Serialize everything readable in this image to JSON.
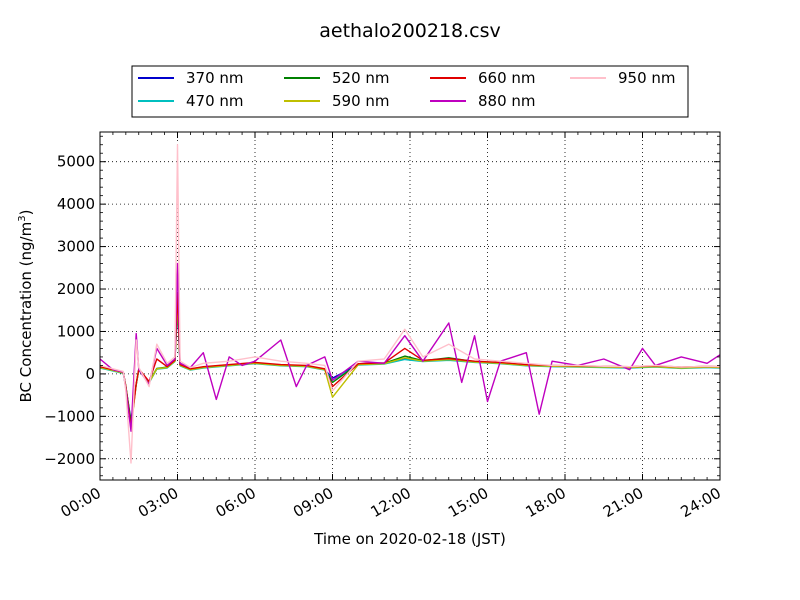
{
  "chart_data": {
    "type": "line",
    "title": "aethalo200218.csv",
    "xlabel": "Time on 2020-02-18 (JST)",
    "ylabel": "BC Concentration (ng/m",
    "ylabel_superscript": "3",
    "ylabel_suffix": ")",
    "xlim": [
      0,
      24
    ],
    "ylim": [
      -2500,
      5700
    ],
    "x_ticks": [
      0,
      3,
      6,
      9,
      12,
      15,
      18,
      21,
      24
    ],
    "x_tick_labels": [
      "00:00",
      "03:00",
      "06:00",
      "09:00",
      "12:00",
      "15:00",
      "18:00",
      "21:00",
      "24:00"
    ],
    "y_ticks": [
      -2000,
      -1000,
      0,
      1000,
      2000,
      3000,
      4000,
      5000
    ],
    "y_tick_labels": [
      "−2000",
      "−1000",
      "0",
      "1000",
      "2000",
      "3000",
      "4000",
      "5000"
    ],
    "grid": true,
    "legend_position": "top-center (above plot)",
    "series": [
      {
        "name": "370 nm",
        "color": "#0000cc",
        "x": [
          0.0,
          0.5,
          0.9,
          1.0,
          1.2,
          1.4,
          1.5,
          1.9,
          2.2,
          2.6,
          2.9,
          3.0,
          3.1,
          3.5,
          4.0,
          5.0,
          6.0,
          7.0,
          8.0,
          8.7,
          9.0,
          10.0,
          11.0,
          11.8,
          12.5,
          13.5,
          14.5,
          15.5,
          16.5,
          17.5,
          18.5,
          19.5,
          20.5,
          21.5,
          22.5,
          23.5,
          24.0
        ],
        "y": [
          150,
          80,
          20,
          -300,
          -1100,
          -250,
          100,
          -200,
          120,
          150,
          300,
          1600,
          200,
          100,
          150,
          200,
          250,
          200,
          180,
          100,
          -100,
          220,
          240,
          350,
          300,
          330,
          280,
          250,
          200,
          180,
          170,
          160,
          150,
          170,
          140,
          160,
          150
        ]
      },
      {
        "name": "470 nm",
        "color": "#00bfbf",
        "x": [
          0.0,
          0.5,
          0.9,
          1.0,
          1.2,
          1.4,
          1.5,
          1.9,
          2.2,
          2.6,
          2.9,
          3.0,
          3.1,
          3.5,
          4.0,
          5.0,
          6.0,
          7.0,
          8.0,
          8.7,
          9.0,
          10.0,
          11.0,
          11.8,
          12.5,
          13.5,
          14.5,
          15.5,
          16.5,
          17.5,
          18.5,
          19.5,
          20.5,
          21.5,
          22.5,
          23.5,
          24.0
        ],
        "y": [
          140,
          70,
          10,
          -320,
          -1200,
          -260,
          90,
          -210,
          110,
          140,
          290,
          1700,
          190,
          90,
          140,
          190,
          240,
          190,
          170,
          90,
          -150,
          210,
          230,
          340,
          290,
          320,
          270,
          240,
          190,
          170,
          160,
          150,
          140,
          160,
          130,
          150,
          140
        ]
      },
      {
        "name": "520 nm",
        "color": "#008000",
        "x": [
          0.0,
          0.5,
          0.9,
          1.0,
          1.2,
          1.4,
          1.5,
          1.9,
          2.2,
          2.6,
          2.9,
          3.0,
          3.1,
          3.5,
          4.0,
          5.0,
          6.0,
          7.0,
          8.0,
          8.7,
          9.0,
          10.0,
          11.0,
          11.8,
          12.5,
          13.5,
          14.5,
          15.5,
          16.5,
          17.5,
          18.5,
          19.5,
          20.5,
          21.5,
          22.5,
          23.5,
          24.0
        ],
        "y": [
          160,
          90,
          30,
          -280,
          -1150,
          -240,
          110,
          -190,
          130,
          160,
          310,
          1650,
          210,
          110,
          160,
          210,
          260,
          210,
          190,
          110,
          -200,
          230,
          250,
          420,
          310,
          380,
          290,
          260,
          210,
          190,
          180,
          170,
          160,
          180,
          150,
          170,
          160
        ]
      },
      {
        "name": "590 nm",
        "color": "#bfbf00",
        "x": [
          0.0,
          0.5,
          0.9,
          1.0,
          1.2,
          1.4,
          1.5,
          1.9,
          2.2,
          2.6,
          2.9,
          3.0,
          3.1,
          3.5,
          4.0,
          5.0,
          6.0,
          7.0,
          8.0,
          8.7,
          9.0,
          10.0,
          11.0,
          11.8,
          12.5,
          13.5,
          14.5,
          15.5,
          16.5,
          17.5,
          18.5,
          19.5,
          20.5,
          21.5,
          22.5,
          23.5,
          24.0
        ],
        "y": [
          150,
          80,
          20,
          -290,
          -1300,
          -250,
          100,
          -200,
          120,
          150,
          300,
          1750,
          200,
          100,
          150,
          200,
          250,
          200,
          180,
          100,
          -550,
          220,
          240,
          380,
          300,
          340,
          280,
          250,
          200,
          180,
          170,
          160,
          150,
          170,
          140,
          160,
          150
        ]
      },
      {
        "name": "660 nm",
        "color": "#e00000",
        "x": [
          0.0,
          0.5,
          0.9,
          1.0,
          1.2,
          1.4,
          1.5,
          1.9,
          2.2,
          2.6,
          2.9,
          3.0,
          3.1,
          3.5,
          4.0,
          5.0,
          6.0,
          7.0,
          8.0,
          8.7,
          9.0,
          10.0,
          11.0,
          11.8,
          12.5,
          13.5,
          14.5,
          15.5,
          16.5,
          17.5,
          18.5,
          19.5,
          20.5,
          21.5,
          22.5,
          23.5,
          24.0
        ],
        "y": [
          170,
          100,
          40,
          -300,
          -1250,
          -230,
          120,
          -180,
          350,
          170,
          320,
          1900,
          220,
          120,
          170,
          220,
          270,
          220,
          200,
          120,
          -300,
          240,
          260,
          600,
          320,
          360,
          300,
          270,
          220,
          200,
          190,
          180,
          170,
          190,
          160,
          180,
          170
        ]
      },
      {
        "name": "880 nm",
        "color": "#bf00bf",
        "x": [
          0.0,
          0.5,
          0.9,
          1.0,
          1.2,
          1.4,
          1.5,
          1.9,
          2.2,
          2.6,
          2.9,
          3.0,
          3.1,
          3.5,
          4.0,
          4.5,
          5.0,
          5.5,
          6.0,
          7.0,
          7.6,
          8.0,
          8.7,
          9.0,
          10.0,
          11.0,
          11.8,
          12.5,
          13.5,
          14.0,
          14.5,
          15.0,
          15.5,
          16.5,
          17.0,
          17.5,
          18.5,
          19.5,
          20.5,
          21.0,
          21.5,
          22.5,
          23.5,
          24.0
        ],
        "y": [
          350,
          100,
          40,
          -350,
          -1350,
          950,
          100,
          -250,
          600,
          200,
          350,
          2600,
          250,
          150,
          500,
          -600,
          400,
          200,
          300,
          800,
          -300,
          200,
          400,
          -150,
          300,
          250,
          900,
          300,
          1200,
          -200,
          900,
          -650,
          300,
          500,
          -950,
          300,
          200,
          350,
          100,
          600,
          200,
          400,
          250,
          450
        ]
      },
      {
        "name": "950 nm",
        "color": "#ffc0cb",
        "x": [
          0.0,
          0.5,
          0.9,
          1.0,
          1.2,
          1.4,
          1.5,
          1.9,
          2.2,
          2.6,
          2.9,
          3.0,
          3.1,
          3.5,
          4.0,
          5.0,
          6.0,
          7.0,
          8.0,
          8.7,
          9.0,
          10.0,
          11.0,
          11.8,
          12.5,
          13.5,
          14.5,
          15.5,
          16.5,
          17.5,
          18.5,
          19.5,
          20.5,
          21.5,
          22.5,
          23.5,
          24.0
        ],
        "y": [
          200,
          120,
          60,
          -400,
          -2100,
          800,
          150,
          -300,
          700,
          250,
          400,
          5400,
          300,
          150,
          250,
          300,
          400,
          300,
          250,
          200,
          -400,
          300,
          350,
          1050,
          400,
          700,
          350,
          300,
          250,
          200,
          200,
          180,
          170,
          200,
          160,
          180,
          170
        ]
      }
    ]
  }
}
